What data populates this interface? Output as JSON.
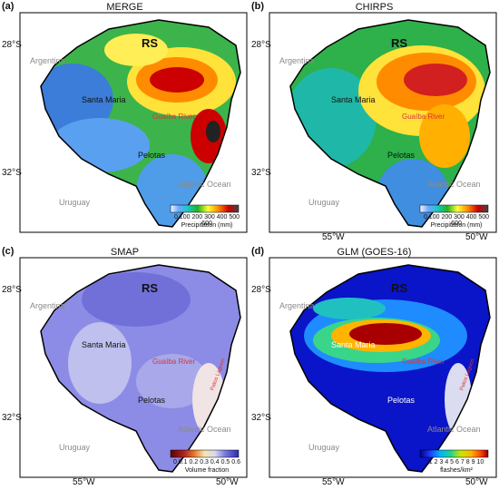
{
  "panels": [
    {
      "label": "(a)",
      "title": "MERGE",
      "colorbar_title": "Precipitation (mm)",
      "colorbar_ticks": [
        "0",
        "100",
        "200",
        "300",
        "400",
        "500",
        "600"
      ]
    },
    {
      "label": "(b)",
      "title": "CHIRPS",
      "colorbar_title": "Precipitation (mm)",
      "colorbar_ticks": [
        "0",
        "100",
        "200",
        "300",
        "400",
        "500",
        "600"
      ]
    },
    {
      "label": "(c)",
      "title": "SMAP",
      "colorbar_title": "Volume fraction",
      "colorbar_ticks": [
        "0",
        "0.1",
        "0.2",
        "0.3",
        "0.4",
        "0.5",
        "0.6"
      ]
    },
    {
      "label": "(d)",
      "title": "GLM (GOES-16)",
      "colorbar_title": "flashes/km²",
      "colorbar_ticks": [
        "1",
        "2",
        "3",
        "4",
        "5",
        "6",
        "7",
        "8",
        "9",
        "10"
      ]
    }
  ],
  "places": {
    "state": "RS",
    "argentina": "Argentina",
    "uruguay": "Uruguay",
    "atlantic": "Atlantic Ocean",
    "santa_maria": "Santa Maria",
    "guaiba": "Guaíba River",
    "pelotas": "Pelotas",
    "patos": "Patos Lagoon"
  },
  "axes": {
    "lat_ticks": [
      "28°S",
      "32°S"
    ],
    "lon_ticks": [
      "55°W",
      "50°W"
    ]
  }
}
